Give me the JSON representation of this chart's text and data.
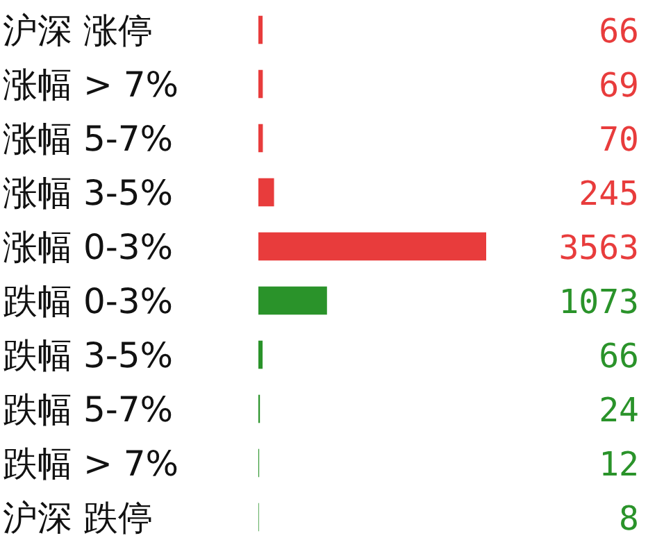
{
  "chart_data": {
    "type": "bar",
    "orientation": "horizontal",
    "data_labels": true,
    "categories": [
      "沪深 涨停",
      "涨幅 > 7%",
      "涨幅 5-7%",
      "涨幅 3-5%",
      "涨幅 0-3%",
      "跌幅 0-3%",
      "跌幅 3-5%",
      "跌幅 5-7%",
      "跌幅 > 7%",
      "沪深 跌停"
    ],
    "values": [
      66,
      69,
      70,
      245,
      3563,
      1073,
      66,
      24,
      12,
      8
    ],
    "colors": [
      "#e83c3c",
      "#e83c3c",
      "#e83c3c",
      "#e83c3c",
      "#e83c3c",
      "#2a932a",
      "#2a932a",
      "#2a932a",
      "#2a932a",
      "#2a932a"
    ]
  }
}
